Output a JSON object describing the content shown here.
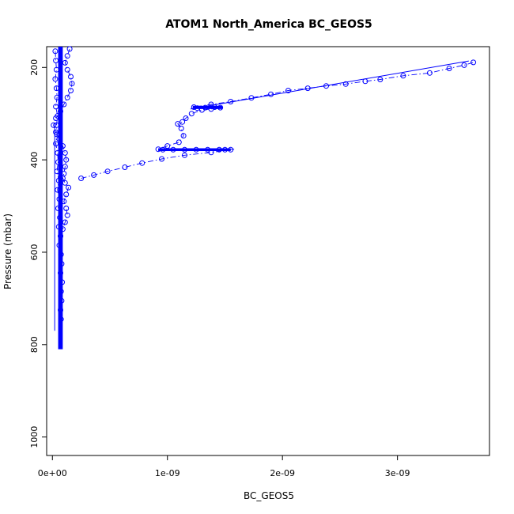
{
  "chart_data": {
    "type": "scatter",
    "title": "ATOM1 North_America BC_GEOS5",
    "xlabel": "BC_GEOS5",
    "ylabel": "Pressure (mbar)",
    "xlim": [
      -5e-11,
      3.8e-09
    ],
    "ylim": [
      1040,
      155
    ],
    "y_reversed": true,
    "x_ticks": [
      {
        "value": 0,
        "label": "0e+00"
      },
      {
        "value": 1e-09,
        "label": "1e-09"
      },
      {
        "value": 2e-09,
        "label": "2e-09"
      },
      {
        "value": 3e-09,
        "label": "3e-09"
      }
    ],
    "y_ticks": [
      {
        "value": 200,
        "label": "200"
      },
      {
        "value": 400,
        "label": "400"
      },
      {
        "value": 600,
        "label": "600"
      },
      {
        "value": 800,
        "label": "800"
      },
      {
        "value": 1000,
        "label": "1000"
      }
    ],
    "grid": false,
    "legend": "none",
    "color": "#0000ff",
    "series": [
      {
        "x": [
          2.5e-11,
          3e-11,
          3.5e-11,
          2.5e-11,
          3.5e-11,
          4e-11,
          3e-11,
          4.5e-11,
          3.5e-11,
          4e-11,
          3e-11,
          4.5e-11,
          5e-11,
          4e-11,
          5.5e-11,
          4.5e-11,
          6e-11,
          5e-11,
          6.5e-11,
          5.5e-11,
          7e-11,
          6e-11,
          7.5e-11,
          8e-11,
          7e-11,
          8.5e-11,
          7.5e-11,
          8e-11,
          7e-11,
          7.5e-11
        ],
        "y": [
          165,
          185,
          205,
          225,
          245,
          265,
          285,
          305,
          325,
          345,
          365,
          385,
          405,
          425,
          445,
          465,
          485,
          505,
          525,
          545,
          565,
          585,
          605,
          625,
          645,
          665,
          685,
          705,
          725,
          745
        ]
      },
      {
        "x": [
          1.5e-10,
          1.3e-10,
          1.1e-10,
          1.3e-10,
          1.6e-10,
          1.7e-10,
          1.6e-10,
          1.3e-10,
          1e-10,
          7e-11,
          3e-11,
          1e-11,
          3e-11,
          6e-11,
          9e-11,
          1.1e-10,
          1.2e-10,
          1.1e-10,
          1e-10,
          9e-11,
          1.1e-10,
          1.4e-10,
          1.2e-10,
          1e-10,
          1.2e-10,
          1.3e-10,
          1.1e-10,
          9e-11,
          7e-11
        ],
        "y": [
          160,
          175,
          190,
          205,
          220,
          235,
          250,
          265,
          280,
          295,
          310,
          325,
          340,
          355,
          370,
          385,
          400,
          415,
          430,
          440,
          450,
          460,
          475,
          490,
          505,
          520,
          535,
          550,
          565
        ]
      },
      {
        "x": [
          2.5e-10,
          3.6e-10,
          4.8e-10,
          6.3e-10,
          7.8e-10,
          9.5e-10,
          1.15e-09,
          1.38e-09,
          1.55e-09,
          1.5e-09,
          1.45e-09,
          1.35e-09,
          1.25e-09,
          1.15e-09,
          1.05e-09,
          9.6e-10,
          9.2e-10,
          1e-09,
          1.1e-09,
          1.14e-09,
          1.12e-09,
          1.09e-09,
          1.13e-09,
          1.16e-09,
          1.21e-09,
          1.3e-09,
          1.38e-09,
          1.46e-09,
          1.41e-09,
          1.33e-09,
          1.26e-09,
          1.23e-09,
          1.38e-09,
          1.55e-09,
          1.73e-09,
          1.9e-09,
          2.05e-09,
          2.22e-09,
          2.38e-09,
          2.55e-09,
          2.72e-09,
          2.85e-09,
          3.05e-09,
          3.28e-09,
          3.45e-09,
          3.58e-09,
          3.66e-09
        ],
        "y": [
          440,
          433,
          425,
          416,
          407,
          398,
          390,
          384,
          378,
          378,
          378,
          378,
          378,
          378,
          378,
          378,
          377,
          370,
          362,
          348,
          332,
          322,
          318,
          310,
          300,
          292,
          290,
          287,
          286,
          287,
          288,
          286,
          280,
          274,
          266,
          258,
          250,
          245,
          240,
          236,
          230,
          226,
          218,
          212,
          202,
          195,
          189
        ]
      }
    ],
    "dense_clusters": [
      {
        "x": [
          5e-11,
          9e-11
        ],
        "y": [
          155,
          810
        ]
      },
      {
        "x": [
          1.22e-09,
          1.48e-09
        ],
        "y": [
          283,
          290
        ]
      },
      {
        "x": [
          9.2e-10,
          1.55e-09
        ],
        "y": [
          375,
          381
        ]
      }
    ],
    "reference_lines": [
      {
        "x": [
          1.2e-09,
          3.62e-09
        ],
        "y": [
          290,
          186
        ]
      },
      {
        "x": [
          1.4e-09,
          1.58e-09
        ],
        "y": [
          377,
          377
        ]
      },
      {
        "x": [
          2e-11,
          2e-11
        ],
        "y": [
          330,
          770
        ]
      }
    ]
  }
}
